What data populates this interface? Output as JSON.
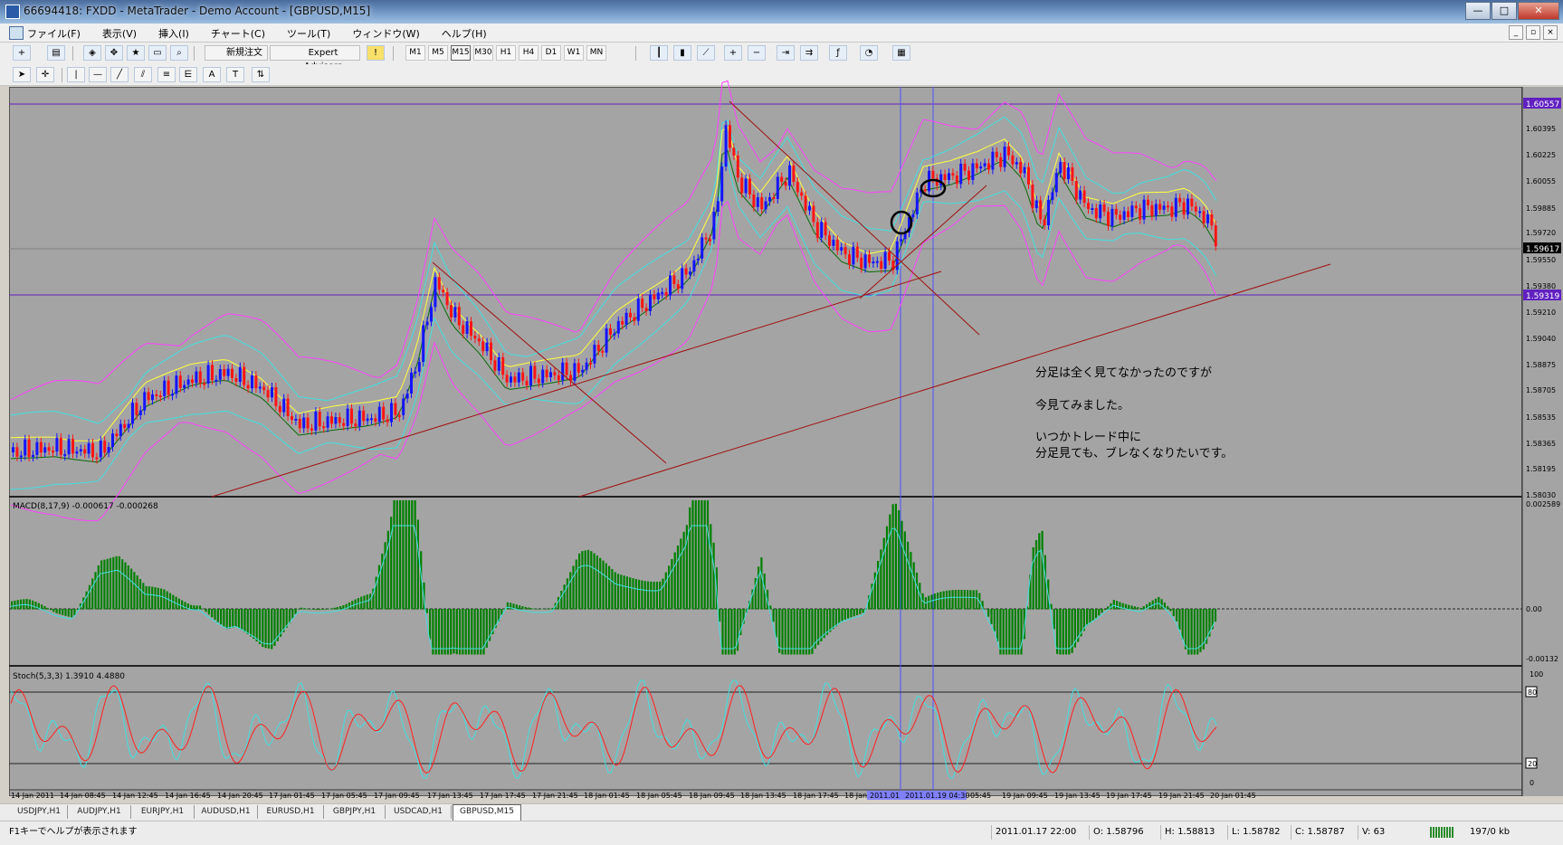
{
  "window": {
    "title": "66694418: FXDD - MetaTrader - Demo Account - [GBPUSD,M15]",
    "buttons": [
      "—",
      "□",
      "✕"
    ]
  },
  "menu": {
    "items": [
      "ファイル(F)",
      "表示(V)",
      "挿入(I)",
      "チャート(C)",
      "ツール(T)",
      "ウィンドウ(W)",
      "ヘルプ(H)"
    ],
    "mdi_buttons": [
      "_",
      "▫",
      "×"
    ]
  },
  "toolbar": {
    "new_order_label": "新規注文",
    "expert_advisors_label": "Expert Advisors",
    "timeframes": [
      "M1",
      "M5",
      "M15",
      "M30",
      "H1",
      "H4",
      "D1",
      "W1",
      "MN"
    ]
  },
  "chart": {
    "symbol": "GBPUSD",
    "timeframe": "M15",
    "price_axis": [
      "1.60557",
      "1.60395",
      "1.60225",
      "1.60055",
      "1.59885",
      "1.59720",
      "1.59617",
      "1.59550",
      "1.59380",
      "1.59319",
      "1.59210",
      "1.59040",
      "1.58875",
      "1.58705",
      "1.58535",
      "1.58365",
      "1.58195",
      "1.58030"
    ],
    "highlighted_prices": {
      "upper_line": "1.60557",
      "current_price": "1.59617",
      "lower_line": "1.59319"
    },
    "annotation": {
      "line1": "分足は全く見てなかったのですが",
      "line2": "今見てみました。",
      "line3": "いつかトレード中に",
      "line4": "分足見ても、ブレなくなりたいです。"
    },
    "macd": {
      "label": "MACD(8,17,9) -0.000617 -0.000268",
      "axis": [
        "0.002589",
        "0.00",
        "-0.00132"
      ]
    },
    "stoch": {
      "label": "Stoch(5,3,3) 1.3910 4.4880",
      "axis": [
        "100",
        "80",
        "20",
        "0"
      ]
    },
    "time_axis": [
      "14 Jan 2011",
      "14 Jan 08:45",
      "14 Jan 12:45",
      "14 Jan 16:45",
      "14 Jan 20:45",
      "17 Jan 01:45",
      "17 Jan 05:45",
      "17 Jan 09:45",
      "17 Jan 13:45",
      "17 Jan 17:45",
      "17 Jan 21:45",
      "18 Jan 01:45",
      "18 Jan 05:45",
      "18 Jan 09:45",
      "18 Jan 13:45",
      "18 Jan 17:45",
      "18 Jan",
      "2011.01",
      "2011.01.19 04:30",
      "05:45",
      "19 Jan 09:45",
      "19 Jan 13:45",
      "19 Jan 17:45",
      "19 Jan 21:45",
      "20 Jan 01:45"
    ]
  },
  "tabs": [
    "USDJPY,H1",
    "AUDJPY,H1",
    "EURJPY,H1",
    "AUDUSD,H1",
    "EURUSD,H1",
    "GBPJPY,H1",
    "USDCAD,H1",
    "GBPUSD,M15"
  ],
  "status": {
    "help": "F1キーでヘルプが表示されます",
    "datetime": "2011.01.17 22:00",
    "open": "O: 1.58796",
    "high": "H: 1.58813",
    "low": "L: 1.58782",
    "close": "C: 1.58787",
    "volume": "V: 63",
    "traffic": "197/0 kb"
  },
  "colors": {
    "chart_bg": "#a4a4a4",
    "bull_candle": "#1414ff",
    "bear_candle": "#ff1414",
    "bollinger_outer": "#ff40ff",
    "bollinger_inner": "#40e0e0",
    "ma_yellow": "#ffff40",
    "ma_green": "#0a6a0a",
    "macd_hist": "#008000",
    "macd_signal": "#40e0e0",
    "stoch_main": "#40e0e0",
    "stoch_signal": "#ff2020",
    "hline": "#6020c0",
    "trendline": "#a01010"
  }
}
